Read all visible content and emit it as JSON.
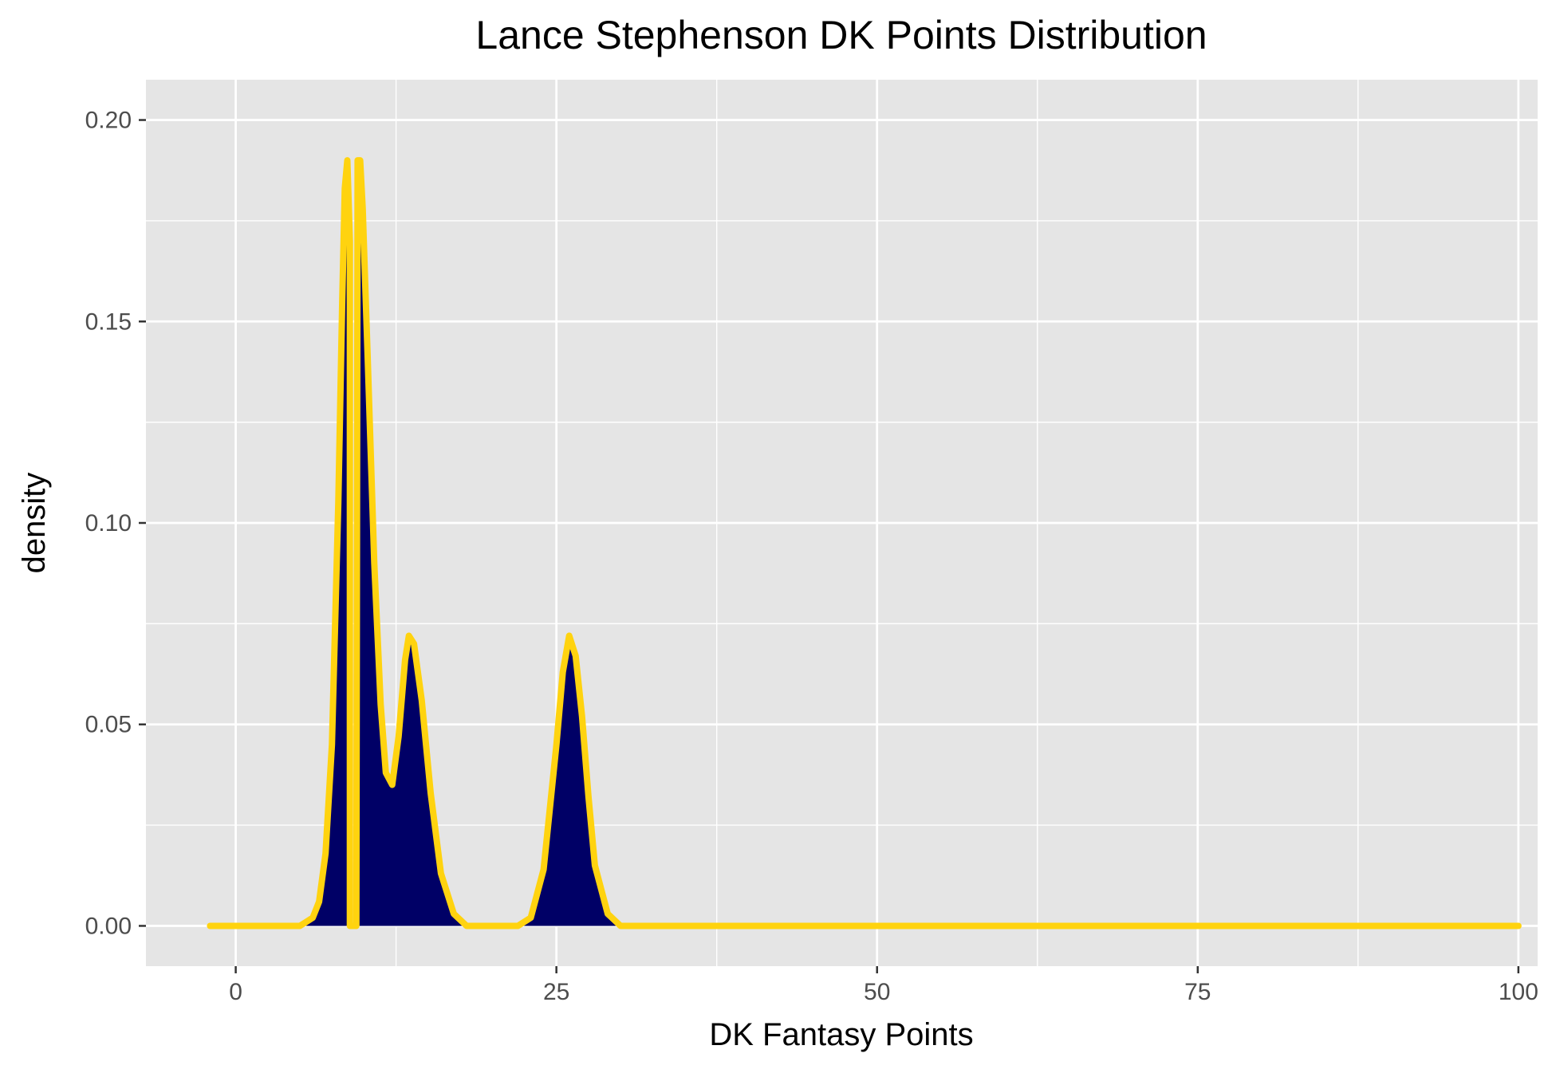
{
  "chart_data": {
    "type": "area",
    "title": "Lance Stephenson DK Points Distribution",
    "xlabel": "DK Fantasy Points",
    "ylabel": "density",
    "xlim": [
      -7,
      101.5
    ],
    "ylim": [
      -0.01,
      0.21
    ],
    "x_ticks": [
      0,
      25,
      50,
      75,
      100
    ],
    "x_tick_labels": [
      "0",
      "25",
      "50",
      "75",
      "100"
    ],
    "y_ticks": [
      0,
      0.05,
      0.1,
      0.15,
      0.2
    ],
    "y_tick_labels": [
      "0.00",
      "0.05",
      "0.10",
      "0.15",
      "0.20"
    ],
    "grid": true,
    "legend": "none",
    "colors": {
      "panel": "#e5e5e5",
      "grid": "#ffffff",
      "fill": "#000066",
      "line": "#ffd30f"
    },
    "series": [
      {
        "x": [
          -2,
          5,
          6,
          6.5,
          7,
          7.5,
          8,
          8.3,
          8.5,
          8.7,
          8.9,
          8.9,
          9.0,
          9.2,
          9.4,
          9.5,
          9.7,
          9.9,
          10.3,
          10.8,
          11.3,
          11.7,
          12.2,
          12.7,
          13.2,
          13.5,
          13.9,
          14.5,
          15.2,
          16,
          17,
          18,
          20,
          22,
          23,
          24,
          25,
          25.5,
          26,
          26.5,
          27,
          27.5,
          28,
          29,
          30,
          32,
          100
        ],
        "y": [
          0,
          0,
          0.002,
          0.006,
          0.018,
          0.045,
          0.105,
          0.155,
          0.183,
          0.19,
          0.17,
          0,
          0,
          0,
          0,
          0.19,
          0.19,
          0.178,
          0.14,
          0.09,
          0.055,
          0.038,
          0.035,
          0.047,
          0.066,
          0.072,
          0.07,
          0.056,
          0.033,
          0.013,
          0.003,
          0,
          0,
          0,
          0.002,
          0.014,
          0.045,
          0.063,
          0.072,
          0.067,
          0.052,
          0.032,
          0.015,
          0.003,
          0,
          0,
          0
        ]
      }
    ]
  }
}
